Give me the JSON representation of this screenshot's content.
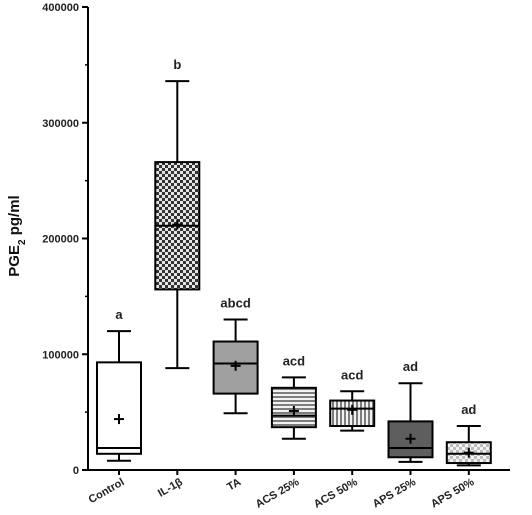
{
  "chart_data": {
    "type": "box",
    "ylabel": "PGE",
    "ylabel_sub": "2",
    "ylabel_unit": " pg/ml",
    "ylim": [
      0,
      400000
    ],
    "yticks": [
      0,
      100000,
      200000,
      300000,
      400000
    ],
    "ytick_labels": [
      "0",
      "100000",
      "200000",
      "300000",
      "400000"
    ],
    "grid": false,
    "legend": "none",
    "categories": [
      "Control",
      "IL-1β",
      "TA",
      "ACS 25%",
      "ACS 50%",
      "APS 25%",
      "APS 50%"
    ],
    "boxes": [
      {
        "label": "Control",
        "min": 8000,
        "q1": 14000,
        "median": 19000,
        "q3": 93000,
        "max": 120000,
        "mean": 44000,
        "sig": "a",
        "fill": "white"
      },
      {
        "label": "IL-1β",
        "min": 88000,
        "q1": 156000,
        "median": 211000,
        "q3": 266000,
        "max": 336000,
        "mean": 212000,
        "sig": "b",
        "fill": "checker"
      },
      {
        "label": "TA",
        "min": 49000,
        "q1": 66000,
        "median": 92000,
        "q3": 111000,
        "max": 130000,
        "mean": 90000,
        "sig": "abcd",
        "fill": "gray"
      },
      {
        "label": "ACS 25%",
        "min": 27000,
        "q1": 37000,
        "median": 47000,
        "q3": 71000,
        "max": 80000,
        "mean": 51000,
        "sig": "acd",
        "fill": "hstripe"
      },
      {
        "label": "ACS 50%",
        "min": 34000,
        "q1": 38000,
        "median": 53000,
        "q3": 60000,
        "max": 68000,
        "mean": 52000,
        "sig": "acd",
        "fill": "vstripe"
      },
      {
        "label": "APS 25%",
        "min": 7000,
        "q1": 11000,
        "median": 19000,
        "q3": 42000,
        "max": 75000,
        "mean": 27000,
        "sig": "ad",
        "fill": "dark"
      },
      {
        "label": "APS 50%",
        "min": 4000,
        "q1": 6000,
        "median": 14000,
        "q3": 24000,
        "max": 38000,
        "mean": 15000,
        "sig": "ad",
        "fill": "lightcheck"
      }
    ]
  }
}
